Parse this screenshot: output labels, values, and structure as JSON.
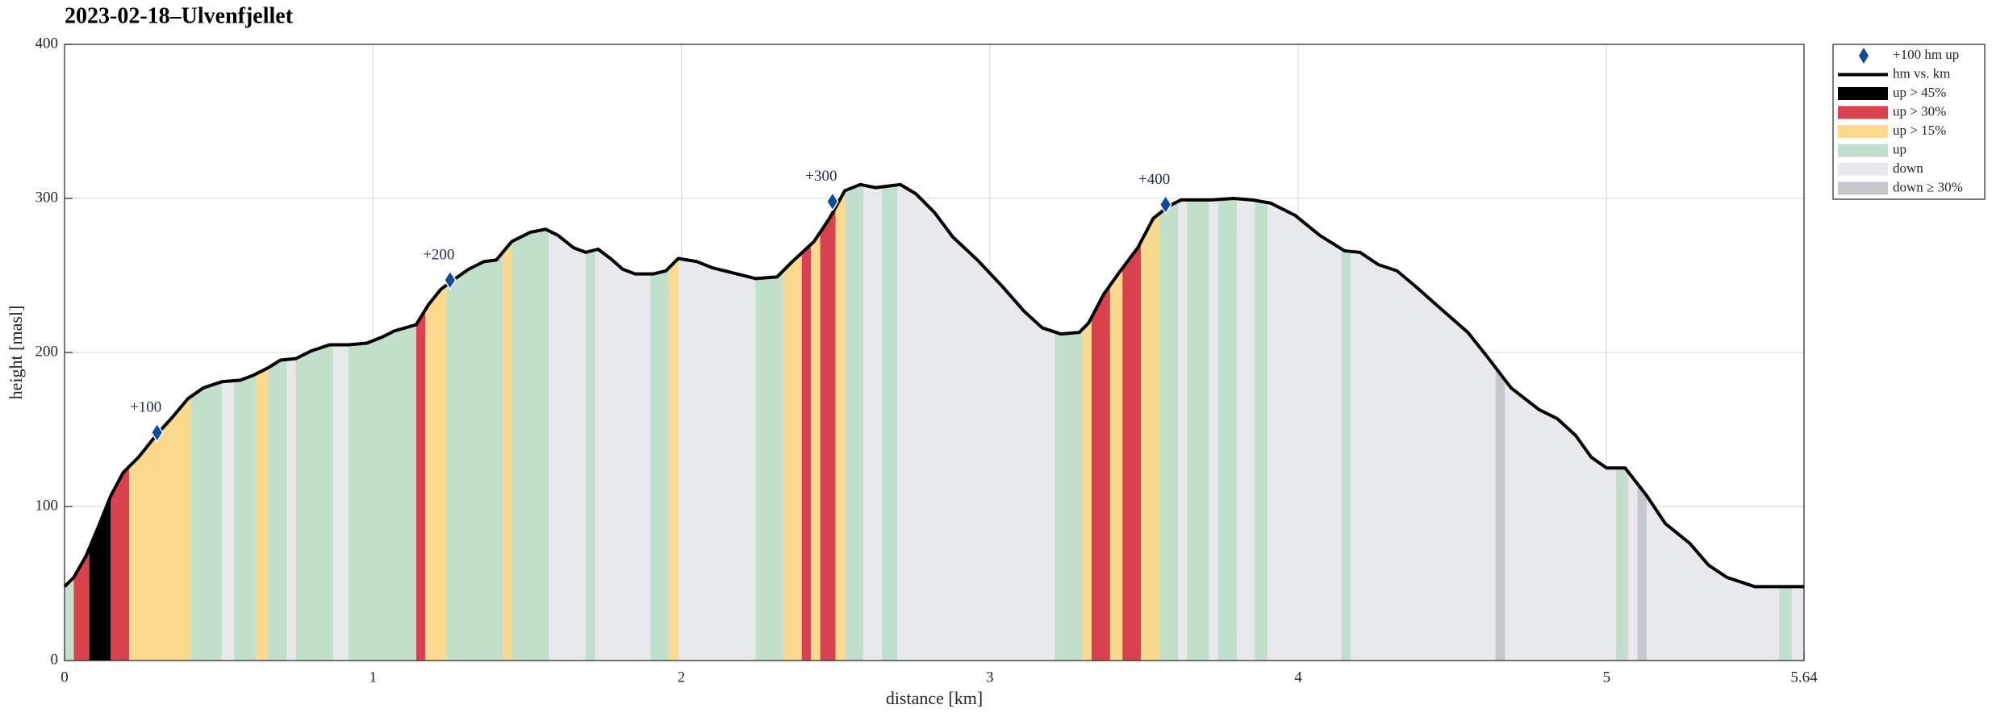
{
  "chart_data": {
    "type": "area",
    "title": "2023-02-18–Ulvenfjellet",
    "xlabel": "distance [km]",
    "ylabel": "height [masl]",
    "xlim": [
      0,
      5.64
    ],
    "ylim": [
      0,
      400
    ],
    "xticks": [
      0,
      1,
      2,
      3,
      4,
      5,
      5.64
    ],
    "yticks": [
      0,
      100,
      200,
      300,
      400
    ],
    "grid": true,
    "legend": "outside upper right",
    "markers": {
      "name": "+100 hm up",
      "color": "#0b4aa2",
      "x": [
        0.3,
        1.25,
        2.49,
        3.57
      ],
      "values": [
        148,
        247,
        298,
        296
      ],
      "labels": [
        "+100",
        "+200",
        "+300",
        "+400"
      ]
    },
    "profile": {
      "name": "hm vs. km",
      "color": "#000000",
      "x": [
        0,
        0.03,
        0.07,
        0.11,
        0.15,
        0.19,
        0.24,
        0.3,
        0.35,
        0.4,
        0.45,
        0.51,
        0.57,
        0.61,
        0.66,
        0.7,
        0.75,
        0.8,
        0.86,
        0.92,
        0.98,
        1.03,
        1.07,
        1.14,
        1.18,
        1.22,
        1.26,
        1.31,
        1.36,
        1.4,
        1.45,
        1.51,
        1.56,
        1.6,
        1.65,
        1.69,
        1.73,
        1.77,
        1.81,
        1.85,
        1.91,
        1.95,
        1.99,
        2.05,
        2.1,
        2.16,
        2.24,
        2.31,
        2.36,
        2.43,
        2.48,
        2.53,
        2.58,
        2.63,
        2.67,
        2.71,
        2.76,
        2.82,
        2.88,
        2.96,
        3.04,
        3.11,
        3.17,
        3.23,
        3.29,
        3.32,
        3.37,
        3.42,
        3.48,
        3.53,
        3.58,
        3.62,
        3.66,
        3.72,
        3.79,
        3.85,
        3.91,
        3.99,
        4.07,
        4.15,
        4.2,
        4.26,
        4.32,
        4.38,
        4.47,
        4.55,
        4.61,
        4.69,
        4.78,
        4.84,
        4.9,
        4.95,
        5.0,
        5.06,
        5.13,
        5.19,
        5.27,
        5.33,
        5.39,
        5.48,
        5.64
      ],
      "values": [
        48,
        54,
        68,
        87,
        107,
        122,
        132,
        147,
        158,
        170,
        177,
        181,
        182,
        185,
        190,
        195,
        196,
        201,
        205,
        205,
        206,
        210,
        214,
        218,
        231,
        241,
        247,
        254,
        259,
        260,
        272,
        278,
        280,
        276,
        268,
        265,
        267,
        261,
        254,
        251,
        251,
        253,
        261,
        259,
        255,
        252,
        248,
        249,
        259,
        272,
        287,
        305,
        309,
        307,
        308,
        309,
        303,
        291,
        275,
        260,
        243,
        227,
        216,
        212,
        213,
        219,
        238,
        252,
        268,
        287,
        295,
        299,
        299,
        299,
        300,
        299,
        297,
        289,
        276,
        266,
        265,
        257,
        253,
        243,
        227,
        213,
        198,
        177,
        163,
        157,
        146,
        132,
        125,
        125,
        107,
        89,
        76,
        62,
        54,
        48,
        48
      ]
    },
    "bands": [
      {
        "name": "up > 45%",
        "color": "#000000",
        "intervals": [
          [
            0.08,
            0.15
          ]
        ]
      },
      {
        "name": "up > 30%",
        "color": "#d9414f",
        "intervals": [
          [
            0.03,
            0.08
          ],
          [
            0.15,
            0.21
          ],
          [
            1.14,
            1.17
          ],
          [
            2.39,
            2.42
          ],
          [
            2.45,
            2.5
          ],
          [
            3.33,
            3.39
          ],
          [
            3.43,
            3.49
          ]
        ]
      },
      {
        "name": "up > 15%",
        "color": "#fdd98e",
        "intervals": [
          [
            0.21,
            0.41
          ],
          [
            0.62,
            0.66
          ],
          [
            1.17,
            1.24
          ],
          [
            1.42,
            1.45
          ],
          [
            1.96,
            1.99
          ],
          [
            2.33,
            2.39
          ],
          [
            2.42,
            2.45
          ],
          [
            2.5,
            2.53
          ],
          [
            3.3,
            3.33
          ],
          [
            3.39,
            3.43
          ],
          [
            3.49,
            3.55
          ]
        ]
      },
      {
        "name": "up",
        "color": "#c2dfcc",
        "intervals": [
          [
            0,
            0.03
          ],
          [
            0.41,
            0.51
          ],
          [
            0.55,
            0.62
          ],
          [
            0.66,
            0.72
          ],
          [
            0.75,
            0.87
          ],
          [
            0.92,
            1.14
          ],
          [
            1.24,
            1.42
          ],
          [
            1.45,
            1.57
          ],
          [
            1.69,
            1.72
          ],
          [
            1.9,
            1.96
          ],
          [
            2.24,
            2.33
          ],
          [
            2.53,
            2.59
          ],
          [
            2.65,
            2.7
          ],
          [
            3.21,
            3.3
          ],
          [
            3.55,
            3.61
          ],
          [
            3.64,
            3.71
          ],
          [
            3.74,
            3.8
          ],
          [
            3.86,
            3.9
          ],
          [
            4.14,
            4.17
          ],
          [
            5.03,
            5.07
          ],
          [
            5.56,
            5.6
          ]
        ]
      },
      {
        "name": "down",
        "color": "#e8e9ec",
        "intervals": []
      },
      {
        "name": "down ≥ 30%",
        "color": "#c6c7ce",
        "intervals": [
          [
            4.64,
            4.67
          ],
          [
            5.1,
            5.13
          ]
        ]
      }
    ]
  }
}
